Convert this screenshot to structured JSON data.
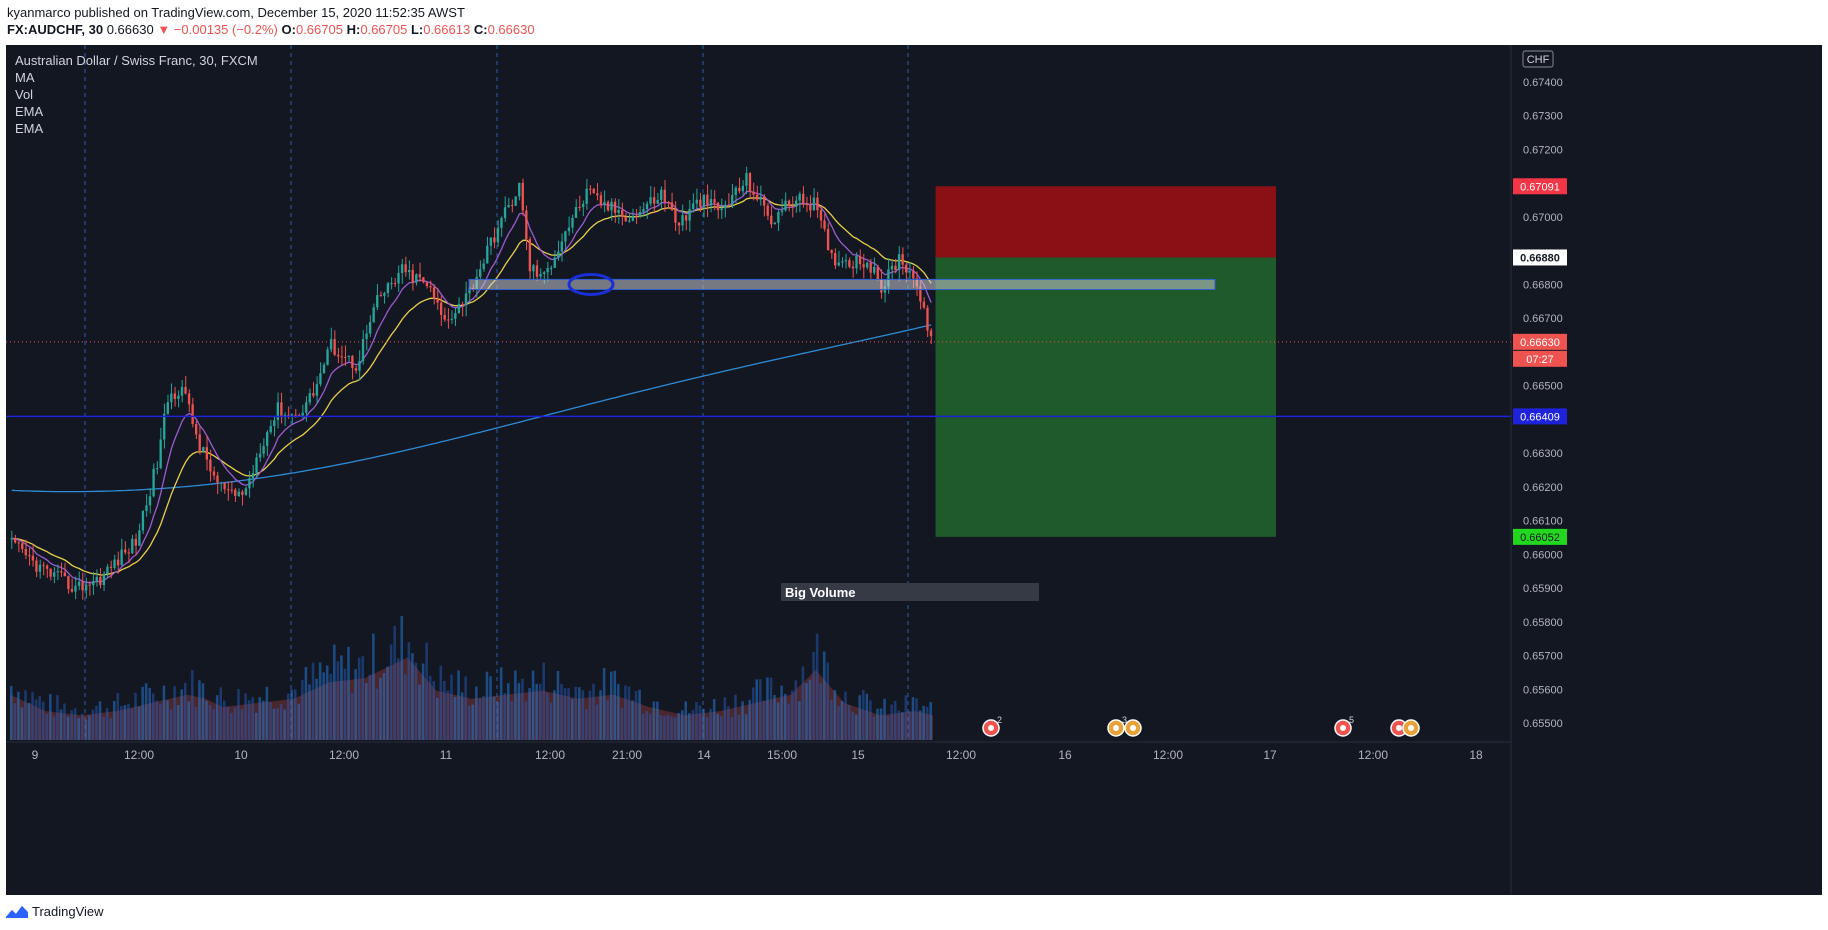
{
  "header": {
    "publisher_line": "kyanmarco published on TradingView.com, December 15, 2020 11:52:35 AWST",
    "symbol": "FX:AUDCHF, 30",
    "last": "0.66630",
    "change": "▼ −0.00135 (−0.2%)",
    "o_label": "O:",
    "o_value": "0.66705",
    "h_label": "H:",
    "h_value": "0.66705",
    "l_label": "L:",
    "l_value": "0.66613",
    "c_label": "C:",
    "c_value": "0.66630"
  },
  "legend": {
    "title": "Australian Dollar / Swiss Franc, 30, FXCM",
    "items": [
      "MA",
      "Vol",
      "EMA",
      "EMA"
    ]
  },
  "currency_badge": "CHF",
  "annotation": "Big Volume",
  "footer": {
    "brand": "TradingView"
  },
  "price_axis": {
    "ticks": [
      "0.67400",
      "0.67300",
      "0.67200",
      "0.67000",
      "0.66800",
      "0.66700",
      "0.66500",
      "0.66300",
      "0.66200",
      "0.66100",
      "0.66000",
      "0.65900",
      "0.65800",
      "0.65700",
      "0.65600",
      "0.65500"
    ],
    "tags": [
      {
        "label": "0.67091",
        "bg": "#f23645",
        "fg": "#ffffff"
      },
      {
        "label": "0.66880",
        "bg": "#ffffff",
        "fg": "#131722"
      },
      {
        "label": "0.66630",
        "bg": "#ef5350",
        "fg": "#ffffff"
      },
      {
        "label": "07:27",
        "bg": "#ef5350",
        "fg": "#ffffff"
      },
      {
        "label": "0.66409",
        "bg": "#1e22d8",
        "fg": "#ffffff"
      },
      {
        "label": "0.66052",
        "bg": "#22d81e",
        "fg": "#131722"
      }
    ]
  },
  "time_axis": {
    "ticks": [
      "9",
      "12:00",
      "10",
      "12:00",
      "11",
      "12:00",
      "21:00",
      "14",
      "15:00",
      "15",
      "12:00",
      "16",
      "12:00",
      "17",
      "12:00",
      "18"
    ]
  },
  "event_badges": [
    "2",
    "3",
    "5"
  ],
  "colors": {
    "bg": "#131722",
    "up": "#26a69a",
    "down": "#ef5350",
    "ema_fast": "#9c5bd1",
    "ema_slow": "#e8d04a",
    "ma": "#2f8bd6",
    "stop_zone": "#8b1016",
    "target_zone": "#1f5a2a",
    "hline": "#1e22d8"
  },
  "chart_data": {
    "type": "candlestick",
    "symbol": "AUDCHF",
    "ylim": [
      0.6545,
      0.6748
    ],
    "horizontal_line": 0.66409,
    "support_zone": [
      0.66785,
      0.66815
    ],
    "short_position": {
      "entry": 0.6688,
      "stop": 0.67091,
      "target": 0.66052
    },
    "ema_fast_end": 0.6687,
    "ema_slow_end": 0.66845,
    "ma_end": 0.66685,
    "ma_start": 0.6619,
    "price_path": [
      [
        0,
        0.6603
      ],
      [
        8,
        0.6596
      ],
      [
        18,
        0.659
      ],
      [
        25,
        0.6593
      ],
      [
        35,
        0.6604
      ],
      [
        41,
        0.6627
      ],
      [
        44,
        0.6646
      ],
      [
        48,
        0.665
      ],
      [
        53,
        0.6632
      ],
      [
        58,
        0.6621
      ],
      [
        62,
        0.6617
      ],
      [
        66,
        0.6619
      ],
      [
        70,
        0.6632
      ],
      [
        75,
        0.6643
      ],
      [
        80,
        0.6641
      ],
      [
        85,
        0.6648
      ],
      [
        90,
        0.6662
      ],
      [
        97,
        0.6656
      ],
      [
        103,
        0.6675
      ],
      [
        110,
        0.6684
      ],
      [
        117,
        0.668
      ],
      [
        122,
        0.6669
      ],
      [
        129,
        0.6678
      ],
      [
        137,
        0.6697
      ],
      [
        143,
        0.6709
      ],
      [
        146,
        0.6685
      ],
      [
        150,
        0.6682
      ],
      [
        156,
        0.6696
      ],
      [
        162,
        0.6707
      ],
      [
        168,
        0.6703
      ],
      [
        175,
        0.67
      ],
      [
        183,
        0.6707
      ],
      [
        188,
        0.6698
      ],
      [
        194,
        0.6705
      ],
      [
        200,
        0.6702
      ],
      [
        207,
        0.6711
      ],
      [
        214,
        0.6699
      ],
      [
        220,
        0.6705
      ],
      [
        226,
        0.6704
      ],
      [
        231,
        0.6688
      ],
      [
        236,
        0.6687
      ],
      [
        241,
        0.6687
      ],
      [
        245,
        0.6679
      ],
      [
        250,
        0.6688
      ],
      [
        254,
        0.6683
      ],
      [
        257,
        0.6671
      ],
      [
        260,
        0.6663
      ]
    ],
    "volume_path": [
      [
        0,
        0.55
      ],
      [
        10,
        0.35
      ],
      [
        20,
        0.3
      ],
      [
        30,
        0.35
      ],
      [
        40,
        0.45
      ],
      [
        50,
        0.55
      ],
      [
        55,
        0.5
      ],
      [
        60,
        0.4
      ],
      [
        70,
        0.45
      ],
      [
        80,
        0.5
      ],
      [
        90,
        0.7
      ],
      [
        100,
        0.75
      ],
      [
        112,
        1.0
      ],
      [
        120,
        0.6
      ],
      [
        130,
        0.5
      ],
      [
        140,
        0.55
      ],
      [
        150,
        0.6
      ],
      [
        160,
        0.5
      ],
      [
        170,
        0.55
      ],
      [
        180,
        0.4
      ],
      [
        190,
        0.3
      ],
      [
        200,
        0.35
      ],
      [
        210,
        0.45
      ],
      [
        220,
        0.55
      ],
      [
        227,
        0.85
      ],
      [
        235,
        0.45
      ],
      [
        245,
        0.3
      ],
      [
        255,
        0.35
      ],
      [
        260,
        0.3
      ]
    ]
  }
}
